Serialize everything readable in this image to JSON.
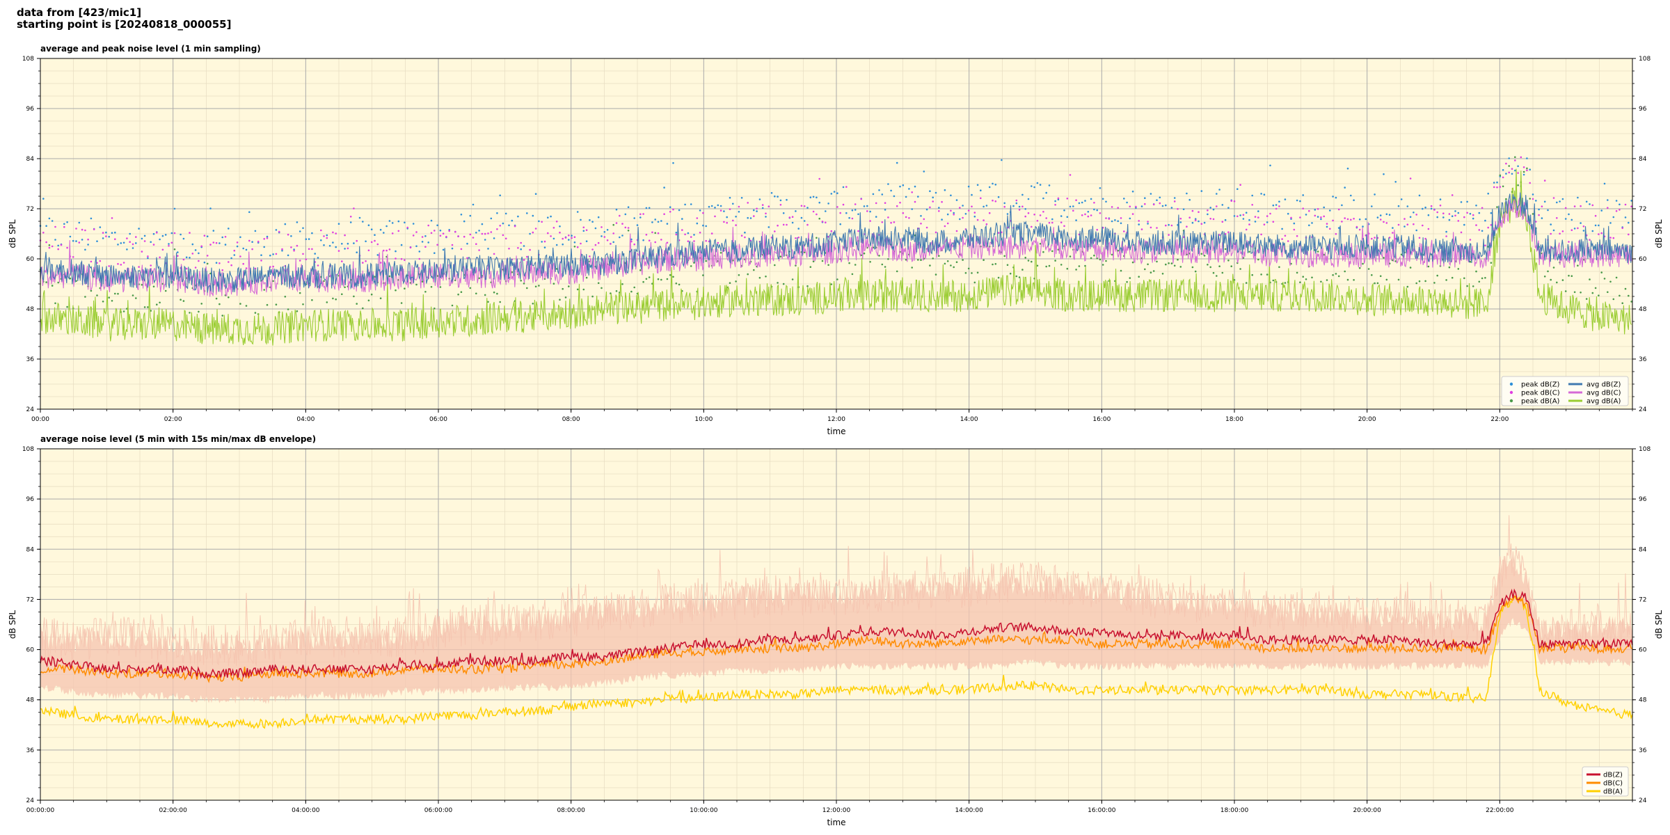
{
  "header": {
    "line1": "data from [423/mic1]",
    "line2": "starting point is [20240818_000055]"
  },
  "colors": {
    "background": "#fff8dc",
    "grid_major": "#aaaaaa",
    "grid_minor": "#e6dcc0",
    "peak_z": "#2f8fd8",
    "peak_c": "#e040e0",
    "peak_a": "#4a9a4a",
    "avg_z": "#3f79b0",
    "avg_c": "#d56ad6",
    "avg_a": "#9acd32",
    "line_z": "#c8102e",
    "line_c": "#ff8c00",
    "line_a": "#ffd000",
    "envelope": "#f5c4b0"
  },
  "chart_data": [
    {
      "type": "line",
      "title": "average and peak noise level (1 min sampling)",
      "xlabel": "time",
      "ylabel": "dB SPL",
      "ylim": [
        24,
        108
      ],
      "xlim_hours": [
        0,
        24
      ],
      "y_ticks": [
        "24",
        "36",
        "48",
        "60",
        "72",
        "84",
        "96",
        "108"
      ],
      "x_ticks": [
        "00:00",
        "02:00",
        "04:00",
        "06:00",
        "08:00",
        "10:00",
        "12:00",
        "14:00",
        "16:00",
        "18:00",
        "20:00",
        "22:00"
      ],
      "grid": true,
      "legend_position": "bottom-right",
      "legend": [
        "peak dB(Z)",
        "peak dB(C)",
        "peak dB(A)",
        "avg dB(Z)",
        "avg dB(C)",
        "avg dB(A)"
      ],
      "x_hours": [
        0,
        0.5,
        1,
        1.5,
        2,
        2.5,
        3,
        3.5,
        4,
        4.5,
        5,
        5.5,
        6,
        6.5,
        7,
        7.5,
        8,
        8.5,
        9,
        9.5,
        10,
        10.5,
        11,
        11.5,
        12,
        12.5,
        13,
        13.5,
        14,
        14.5,
        15,
        15.5,
        16,
        16.5,
        17,
        17.5,
        18,
        18.5,
        19,
        19.5,
        20,
        20.5,
        21,
        21.5,
        21.8,
        22,
        22.2,
        22.4,
        22.6,
        23,
        23.5,
        24
      ],
      "series": [
        {
          "name": "avg dB(Z)",
          "values": [
            57,
            56,
            55,
            55,
            55,
            54,
            54,
            55,
            55,
            55,
            55,
            56,
            56,
            57,
            57,
            57,
            58,
            58,
            59,
            60,
            61,
            61,
            62,
            62,
            63,
            64,
            64,
            63,
            64,
            65,
            65,
            64,
            64,
            63,
            63,
            63,
            63,
            62,
            62,
            62,
            62,
            62,
            61,
            61,
            61,
            70,
            73,
            72,
            61,
            61,
            61,
            61
          ]
        },
        {
          "name": "avg dB(C)",
          "values": [
            55,
            55,
            54,
            54,
            54,
            53,
            53,
            54,
            54,
            54,
            54,
            55,
            55,
            55,
            55,
            56,
            56,
            57,
            58,
            59,
            59,
            60,
            60,
            60,
            61,
            62,
            61,
            61,
            62,
            62,
            62,
            62,
            61,
            61,
            61,
            61,
            61,
            60,
            60,
            60,
            60,
            60,
            60,
            60,
            59,
            69,
            72,
            71,
            60,
            60,
            60,
            60
          ]
        },
        {
          "name": "avg dB(A)",
          "values": [
            45,
            44,
            43,
            43,
            43,
            42,
            42,
            42,
            43,
            43,
            43,
            43,
            44,
            44,
            45,
            45,
            46,
            47,
            47,
            48,
            48,
            49,
            49,
            49,
            50,
            50,
            50,
            50,
            50,
            51,
            51,
            50,
            50,
            50,
            50,
            50,
            50,
            50,
            50,
            50,
            49,
            49,
            49,
            48,
            48,
            68,
            72,
            70,
            50,
            47,
            45,
            44
          ]
        }
      ]
    },
    {
      "type": "line",
      "title": "average noise level (5 min with 15s min/max dB envelope)",
      "xlabel": "time",
      "ylabel": "dB SPL",
      "ylim": [
        24,
        108
      ],
      "xlim_hours": [
        0,
        24
      ],
      "y_ticks": [
        "24",
        "36",
        "48",
        "60",
        "72",
        "84",
        "96",
        "108"
      ],
      "x_ticks": [
        "00:00:00",
        "02:00:00",
        "04:00:00",
        "06:00:00",
        "08:00:00",
        "10:00:00",
        "12:00:00",
        "14:00:00",
        "16:00:00",
        "18:00:00",
        "20:00:00",
        "22:00:00"
      ],
      "grid": true,
      "legend_position": "bottom-right",
      "legend": [
        "dB(Z)",
        "dB(C)",
        "dB(A)"
      ],
      "x_hours": [
        0,
        0.5,
        1,
        1.5,
        2,
        2.5,
        3,
        3.5,
        4,
        4.5,
        5,
        5.5,
        6,
        6.5,
        7,
        7.5,
        8,
        8.5,
        9,
        9.5,
        10,
        10.5,
        11,
        11.5,
        12,
        12.5,
        13,
        13.5,
        14,
        14.5,
        15,
        15.5,
        16,
        16.5,
        17,
        17.5,
        18,
        18.5,
        19,
        19.5,
        20,
        20.5,
        21,
        21.5,
        21.8,
        22,
        22.2,
        22.4,
        22.6,
        23,
        23.5,
        24
      ],
      "series": [
        {
          "name": "dB(Z)",
          "values": [
            57,
            56,
            55,
            55,
            55,
            54,
            54,
            55,
            55,
            55,
            55,
            56,
            56,
            57,
            57,
            57,
            58,
            58,
            59,
            60,
            61,
            61,
            62,
            62,
            63,
            64,
            64,
            63,
            64,
            65,
            65,
            64,
            64,
            63,
            63,
            63,
            63,
            62,
            62,
            62,
            62,
            62,
            61,
            61,
            61,
            70,
            73,
            72,
            61,
            61,
            61,
            61
          ]
        },
        {
          "name": "dB(C)",
          "values": [
            55,
            55,
            54,
            54,
            54,
            53,
            53,
            54,
            54,
            54,
            54,
            55,
            55,
            55,
            55,
            56,
            56,
            57,
            58,
            59,
            59,
            60,
            60,
            60,
            61,
            62,
            61,
            61,
            62,
            62,
            62,
            62,
            61,
            61,
            61,
            61,
            61,
            60,
            60,
            60,
            60,
            60,
            60,
            60,
            59,
            69,
            72,
            71,
            60,
            60,
            60,
            60
          ]
        },
        {
          "name": "dB(A)",
          "values": [
            45,
            44,
            43,
            43,
            43,
            42,
            42,
            42,
            43,
            43,
            43,
            43,
            44,
            44,
            45,
            45,
            46,
            47,
            47,
            48,
            48,
            49,
            49,
            49,
            50,
            50,
            50,
            50,
            50,
            51,
            51,
            50,
            50,
            50,
            50,
            50,
            50,
            50,
            50,
            50,
            49,
            49,
            49,
            48,
            48,
            68,
            72,
            70,
            50,
            47,
            45,
            44
          ]
        }
      ],
      "envelope": {
        "name": "15s min/max dB envelope",
        "max": [
          62,
          61,
          62,
          62,
          60,
          60,
          60,
          60,
          62,
          62,
          62,
          62,
          64,
          65,
          65,
          66,
          67,
          68,
          69,
          70,
          70,
          71,
          72,
          72,
          72,
          73,
          73,
          73,
          74,
          75,
          75,
          74,
          73,
          72,
          71,
          70,
          70,
          69,
          68,
          68,
          67,
          67,
          66,
          66,
          66,
          78,
          80,
          76,
          64,
          64,
          64,
          64
        ],
        "min": [
          52,
          51,
          50,
          50,
          50,
          49,
          49,
          49,
          50,
          50,
          50,
          51,
          51,
          51,
          52,
          52,
          52,
          53,
          54,
          55,
          55,
          56,
          56,
          56,
          57,
          57,
          57,
          57,
          57,
          57,
          58,
          57,
          57,
          57,
          57,
          57,
          57,
          57,
          57,
          57,
          57,
          57,
          57,
          57,
          57,
          64,
          68,
          66,
          58,
          58,
          58,
          58
        ]
      }
    }
  ]
}
